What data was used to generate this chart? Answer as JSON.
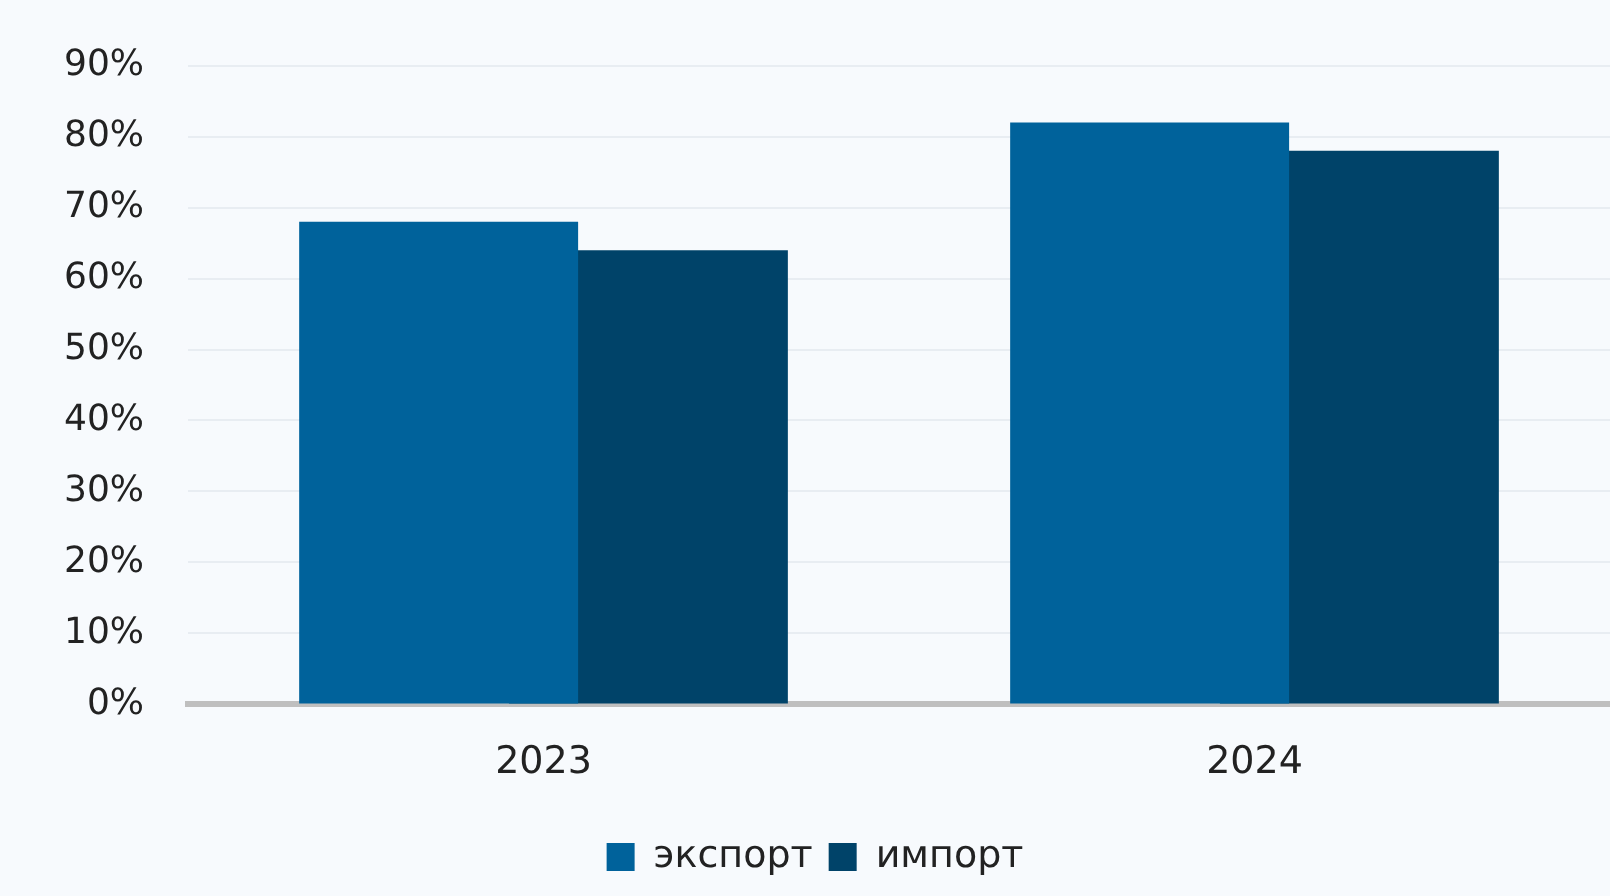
{
  "chart_data": {
    "type": "bar",
    "categories": [
      "2023",
      "2024"
    ],
    "series": [
      {
        "name": "экспорт",
        "color": "#00629b",
        "values": [
          68,
          82
        ]
      },
      {
        "name": "импорт",
        "color": "#004369",
        "values": [
          64,
          78
        ]
      }
    ],
    "ylim": [
      0,
      90
    ],
    "yticks": [
      {
        "value": 0,
        "label": "0%"
      },
      {
        "value": 10,
        "label": "10%"
      },
      {
        "value": 20,
        "label": "20%"
      },
      {
        "value": 30,
        "label": "30%"
      },
      {
        "value": 40,
        "label": "40%"
      },
      {
        "value": 50,
        "label": "50%"
      },
      {
        "value": 60,
        "label": "60%"
      },
      {
        "value": 70,
        "label": "70%"
      },
      {
        "value": 80,
        "label": "80%"
      },
      {
        "value": 90,
        "label": "90%"
      }
    ],
    "grid": "y",
    "legend": "bottom"
  }
}
